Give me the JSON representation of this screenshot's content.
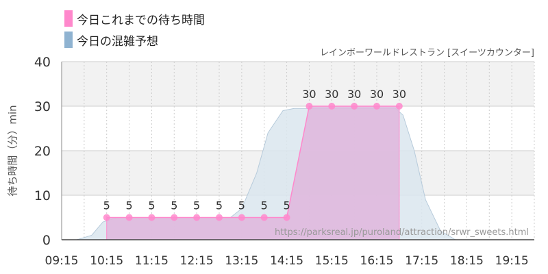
{
  "legend": [
    {
      "label": "今日これまでの待ち時間",
      "color": "#ff88cc"
    },
    {
      "label": "今日の混雑予想",
      "color": "#8fb3d1"
    }
  ],
  "subtitle": "レインボーワールドレストラン [スイーツカウンター]",
  "source_url": "https://parksreal.jp/puroland/attraction/srwr_sweets.html",
  "colors": {
    "actual_fill": "#dfb7dd",
    "actual_line": "#ff88cc",
    "forecast_fill": "#dbe6ee",
    "forecast_line": "#b7cbdb",
    "band": "#f2f2f2",
    "grid": "#cccccc"
  },
  "chart_data": {
    "type": "area",
    "ylabel": "待ち時間（分）min",
    "ylim": [
      0,
      40
    ],
    "yticks": [
      0,
      10,
      20,
      30,
      40
    ],
    "xlim": [
      "09:15",
      "19:45"
    ],
    "xticks": [
      "09:15",
      "10:15",
      "11:15",
      "12:15",
      "13:15",
      "14:15",
      "15:15",
      "16:15",
      "17:15",
      "18:15",
      "19:15"
    ],
    "grid": true,
    "series": [
      {
        "name": "今日これまでの待ち時間",
        "x": [
          "10:15",
          "10:45",
          "11:15",
          "11:45",
          "12:15",
          "12:45",
          "13:15",
          "13:45",
          "14:15",
          "14:45",
          "15:15",
          "15:45",
          "16:15",
          "16:45"
        ],
        "values": [
          5,
          5,
          5,
          5,
          5,
          5,
          5,
          5,
          5,
          30,
          30,
          30,
          30,
          30
        ],
        "labels": [
          "5",
          "5",
          "5",
          "5",
          "5",
          "5",
          "5",
          "5",
          "5",
          "30",
          "30",
          "30",
          "30",
          "30"
        ]
      },
      {
        "name": "今日の混雑予想",
        "x": [
          "09:15",
          "09:35",
          "09:55",
          "10:10",
          "10:30",
          "12:15",
          "13:00",
          "13:15",
          "13:35",
          "13:50",
          "14:10",
          "14:25",
          "14:40",
          "16:40",
          "16:50",
          "17:05",
          "17:20",
          "17:40",
          "18:00",
          "19:45"
        ],
        "values": [
          0,
          0,
          1,
          4,
          5,
          5,
          5,
          7,
          15,
          24,
          29,
          29.5,
          29.5,
          29.5,
          28,
          20,
          9,
          2,
          0,
          0
        ]
      }
    ]
  }
}
